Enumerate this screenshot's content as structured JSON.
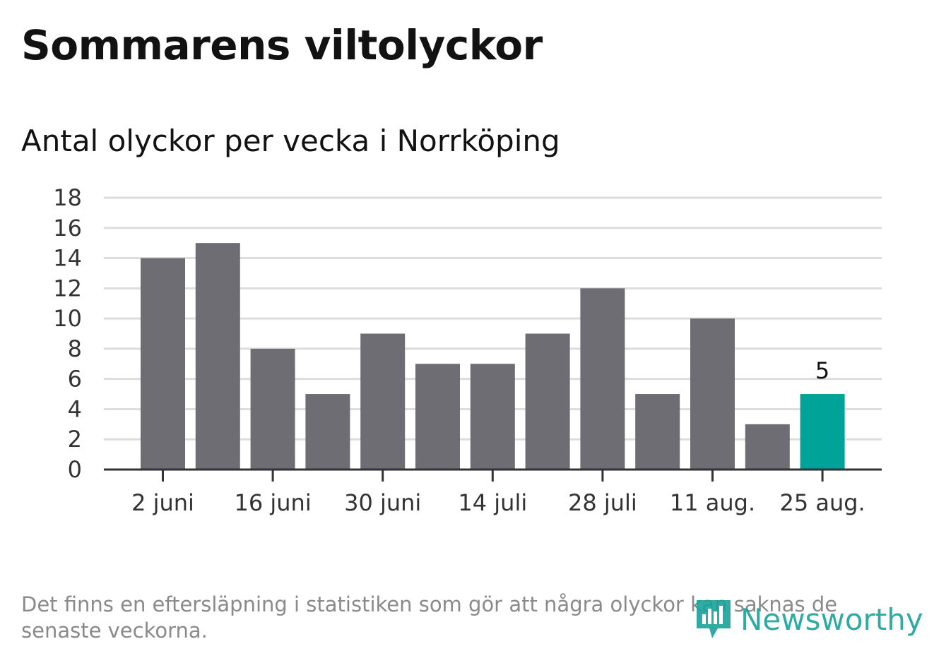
{
  "title": "Sommarens viltolyckor",
  "subtitle": "Antal olyckor per vecka i Norrköping",
  "footnote": "Det finns en eftersläpning i statistiken som gör att några olyckor kan saknas de senaste veckorna.",
  "logo": {
    "text": "Newsworthy",
    "icon": "newsworthy-logo-icon",
    "color": "#1aa39a"
  },
  "colors": {
    "bar": "#6e6d74",
    "highlight": "#00a398",
    "grid": "#dddddd",
    "axis": "#333333"
  },
  "chart_data": {
    "type": "bar",
    "values": [
      14,
      15,
      8,
      5,
      9,
      7,
      7,
      9,
      12,
      5,
      10,
      3,
      5
    ],
    "x_tick_labels": [
      "2 juni",
      "16 juni",
      "30 juni",
      "14 juli",
      "28 juli",
      "11 aug.",
      "25 aug."
    ],
    "x_tick_positions": [
      0,
      2,
      4,
      6,
      8,
      10,
      12
    ],
    "y_ticks": [
      0,
      2,
      4,
      6,
      8,
      10,
      12,
      14,
      16,
      18
    ],
    "ylim": [
      0,
      18
    ],
    "highlight_index": 12,
    "data_labels": [
      {
        "index": 12,
        "text": "5"
      }
    ],
    "grid": true,
    "legend": "none"
  }
}
